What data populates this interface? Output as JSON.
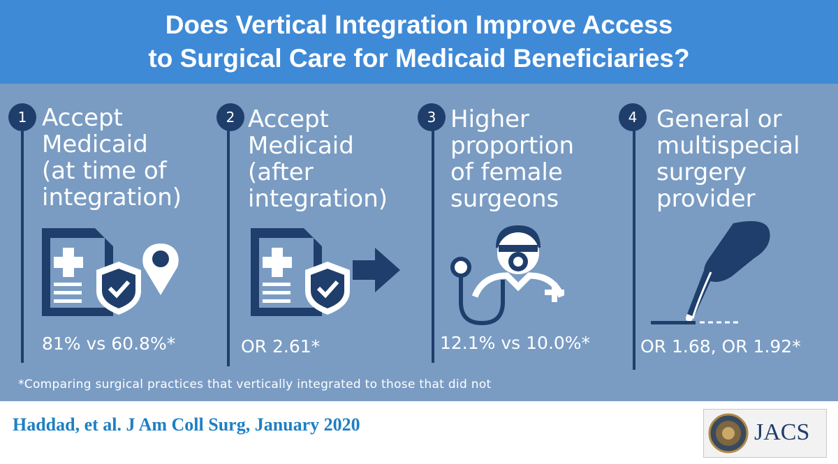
{
  "title": {
    "line1": "Does Vertical Integration Improve Access",
    "line2": "to Surgical Care for Medicaid Beneficiaries?"
  },
  "findings": [
    {
      "number": "1",
      "heading": "Accept\nMedicaid\n(at time of\nintegration)",
      "stat": "81% vs 60.8%*",
      "icons": [
        "document-medical-icon",
        "shield-check-icon",
        "location-pin-icon"
      ]
    },
    {
      "number": "2",
      "heading": "Accept\nMedicaid\n(after\nintegration)",
      "stat": "OR 2.61*",
      "icons": [
        "document-medical-icon",
        "shield-check-icon",
        "arrow-right-icon"
      ]
    },
    {
      "number": "3",
      "heading": "Higher\nproportion\nof female\nsurgeons",
      "stat": "12.1% vs 10.0%*",
      "icons": [
        "female-surgeon-icon",
        "stethoscope-icon"
      ]
    },
    {
      "number": "4",
      "heading": "General or\nmultispecial\nsurgery\nprovider",
      "stat": "OR 1.68, OR 1.92*",
      "icons": [
        "scalpel-hand-icon"
      ]
    }
  ],
  "footnote": "*Comparing surgical practices that vertically integrated to those that did not",
  "citation": "Haddad, et al. J Am Coll Surg, January 2020",
  "logo": {
    "text": "JACS"
  },
  "colors": {
    "header": "#3f8ad7",
    "panel": "#7a9cc3",
    "accent": "#1f3e6b",
    "citation": "#1e7fc4"
  }
}
